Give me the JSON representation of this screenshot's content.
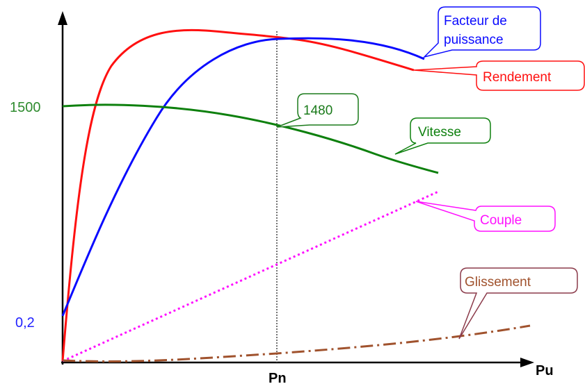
{
  "chart_data": {
    "type": "line",
    "xlabel": "Pu",
    "x_tick_labels": [
      "Pn"
    ],
    "y_tick_labels": [
      {
        "text": "1500",
        "color": "#2e8b2e"
      },
      {
        "text": "0,2",
        "color": "#2222ff"
      }
    ],
    "annotation": {
      "text": "1480",
      "color": "#1a7a1a"
    },
    "grid": false,
    "legend": "callouts",
    "series": [
      {
        "name": "Facteur de puissance",
        "callout_lines": [
          "Facteur de",
          "puissance"
        ],
        "color": "#0a0aff",
        "style": "solid"
      },
      {
        "name": "Rendement",
        "callout_lines": [
          "Rendement"
        ],
        "color": "#ff1010",
        "style": "solid"
      },
      {
        "name": "Vitesse",
        "callout_lines": [
          "Vitesse"
        ],
        "color": "#0e800e",
        "style": "solid"
      },
      {
        "name": "Couple",
        "callout_lines": [
          "Couple"
        ],
        "color": "#ff10ff",
        "style": "dotted"
      },
      {
        "name": "Glissement",
        "callout_lines": [
          "Glissement"
        ],
        "color": "#a0522d",
        "style": "dashdot"
      }
    ]
  }
}
